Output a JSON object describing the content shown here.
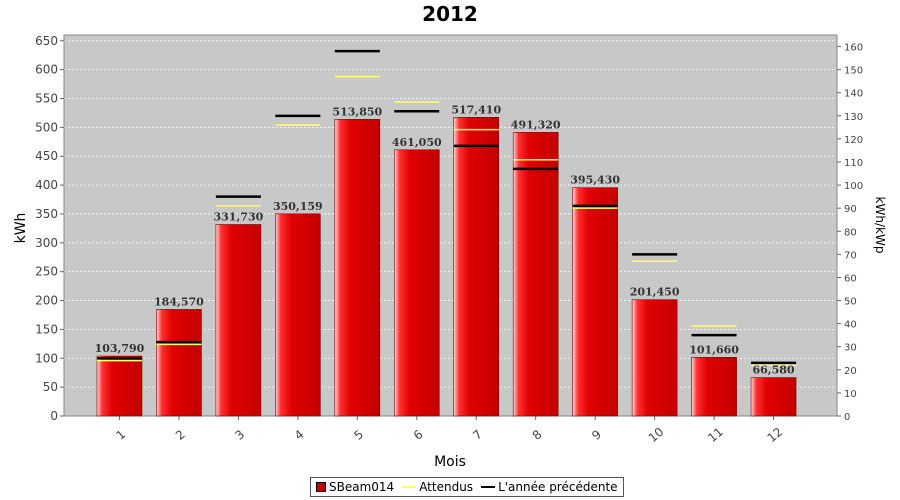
{
  "chart_data": {
    "type": "bar",
    "title": "2012",
    "xlabel": "Mois",
    "ylabel": "kWh",
    "y2label": "kWh/kWp",
    "categories": [
      "1",
      "2",
      "3",
      "4",
      "5",
      "6",
      "7",
      "8",
      "9",
      "10",
      "11",
      "12"
    ],
    "ylim": [
      0,
      660
    ],
    "y2lim": [
      0,
      165
    ],
    "yticks": [
      "0",
      "50",
      "100",
      "150",
      "200",
      "250",
      "300",
      "350",
      "400",
      "450",
      "500",
      "550",
      "600",
      "650"
    ],
    "y2ticks": [
      "0",
      "10",
      "20",
      "30",
      "40",
      "50",
      "60",
      "70",
      "80",
      "90",
      "100",
      "110",
      "120",
      "130",
      "140",
      "150",
      "160"
    ],
    "series": [
      {
        "name": "SBeam014",
        "kind": "bar",
        "values": [
          103790,
          184570,
          331730,
          350159,
          513850,
          461050,
          517410,
          491320,
          395430,
          201450,
          101660,
          66580
        ],
        "display_values": [
          103.79,
          184.57,
          331.73,
          350.159,
          513.85,
          461.05,
          517.41,
          491.32,
          395.43,
          201.45,
          101.66,
          66.58
        ],
        "labels": [
          "103,790",
          "184,570",
          "331,730",
          "350,159",
          "513,850",
          "461,050",
          "517,410",
          "491,320",
          "395,430",
          "201,450",
          "101,660",
          "66,580"
        ],
        "color": "#e00000"
      },
      {
        "name": "Attendus",
        "kind": "marker",
        "values": [
          24,
          31,
          91,
          126,
          147,
          136,
          124,
          111,
          90,
          67,
          39,
          22
        ],
        "color": "#ffff66"
      },
      {
        "name": "L'année précédente",
        "kind": "marker",
        "values": [
          25,
          32,
          95,
          130,
          158,
          132,
          117,
          107,
          91,
          70,
          35,
          23
        ],
        "color": "#000000"
      }
    ],
    "grid": true,
    "legend": "bottom-center"
  }
}
